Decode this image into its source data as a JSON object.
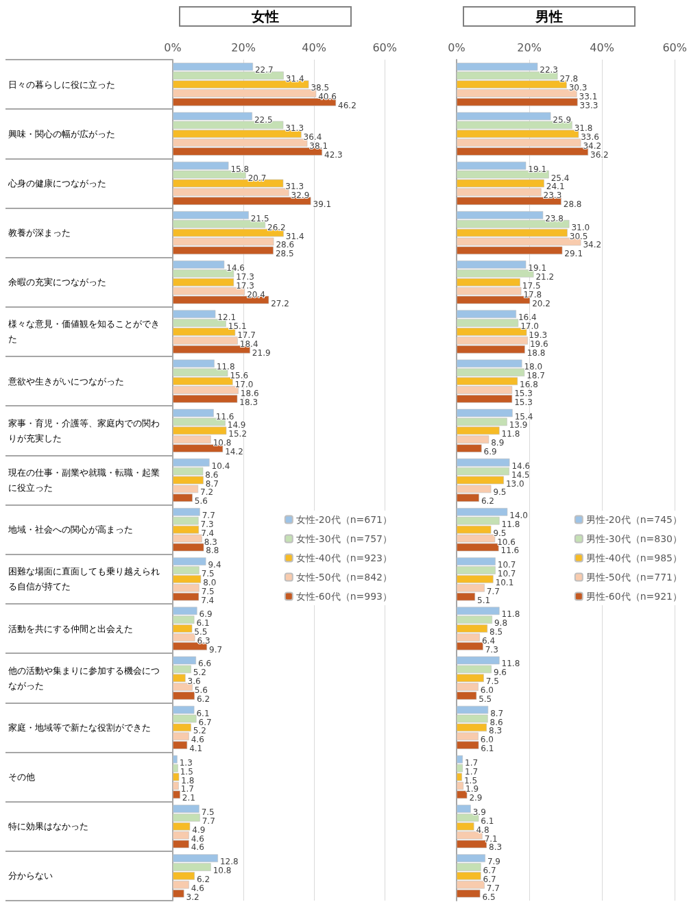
{
  "chart_data": [
    {
      "type": "bar",
      "orientation": "horizontal",
      "title": "女性",
      "categories": [
        "日々の暮らしに役に立った",
        "興味・関心の幅が広がった",
        "心身の健康につながった",
        "教養が深まった",
        "余暇の充実につながった",
        "様々な意見・価値観を知ることができた",
        "意欲や生きがいにつながった",
        "家事・育児・介護等、家庭内での関わりが充実した",
        "現在の仕事・副業や就職・転職・起業に役立った",
        "地域・社会への関心が高まった",
        "困難な場面に直面しても乗り越えられる自信が持てた",
        "活動を共にする仲間と出会えた",
        "他の活動や集まりに参加する機会につながった",
        "家庭・地域等で新たな役割ができた",
        "その他",
        "特に効果はなかった",
        "分からない"
      ],
      "series": [
        {
          "name": "女性-20代（n=671）",
          "color": "#9dc3e6",
          "values": [
            22.7,
            22.5,
            15.8,
            21.5,
            14.6,
            12.1,
            11.8,
            11.6,
            10.4,
            7.7,
            9.4,
            6.9,
            6.6,
            6.1,
            1.3,
            7.5,
            12.8
          ],
          "value_labels": [
            "22.7",
            "22.5",
            "15.8",
            "21.5",
            "14.6",
            "12.1",
            "11.8",
            "11.6",
            "10.4",
            "7.7",
            "9.4",
            "6.9",
            "6.6",
            "6.1",
            "1.3",
            "7.5",
            "12.8"
          ]
        },
        {
          "name": "女性-30代（n=757）",
          "color": "#c5e0b4",
          "values": [
            31.4,
            31.3,
            20.7,
            26.2,
            17.3,
            15.1,
            15.6,
            14.9,
            8.6,
            7.3,
            7.5,
            6.1,
            5.2,
            6.7,
            1.5,
            7.7,
            10.8
          ],
          "value_labels": [
            "31.4",
            "31.3",
            "20.7",
            "26.2",
            "17.3",
            "15.1",
            "15.6",
            "14.9",
            "8.6",
            "7.3",
            "7.5",
            "6.1",
            "5.2",
            "6.7",
            "1.5",
            "7.7",
            "10.8"
          ]
        },
        {
          "name": "女性-40代（n=923）",
          "color": "#f6bb26",
          "values": [
            38.5,
            36.4,
            31.3,
            31.4,
            17.3,
            17.7,
            17.0,
            15.2,
            8.7,
            7.4,
            8.0,
            5.5,
            3.6,
            5.2,
            1.8,
            4.9,
            6.2
          ],
          "value_labels": [
            "38.5",
            "36.4",
            "31.3",
            "31.4",
            "17.3",
            "17.7",
            "17.0",
            "15.2",
            "8.7",
            "7.4",
            "8.0",
            "5.5",
            "3.6",
            "5.2",
            "1.8",
            "4.9",
            "6.2"
          ]
        },
        {
          "name": "女性-50代（n=842）",
          "color": "#f8cbad",
          "values": [
            40.6,
            38.1,
            32.9,
            28.6,
            20.4,
            18.4,
            18.6,
            10.8,
            7.2,
            8.3,
            7.5,
            6.3,
            5.6,
            4.6,
            1.7,
            4.6,
            4.6
          ],
          "value_labels": [
            "40.6",
            "38.1",
            "32.9",
            "28.6",
            "20.4",
            "18.4",
            "18.6",
            "10.8",
            "7.2",
            "8.3",
            "7.5",
            "6.3",
            "5.6",
            "4.6",
            "1.7",
            "4.6",
            "4.6"
          ]
        },
        {
          "name": "女性-60代（n=993）",
          "color": "#c55a22",
          "values": [
            46.2,
            42.3,
            39.1,
            28.5,
            27.2,
            21.9,
            18.3,
            14.2,
            5.6,
            8.8,
            7.4,
            9.7,
            6.2,
            4.1,
            2.1,
            4.6,
            3.2
          ],
          "value_labels": [
            "46.2",
            "42.3",
            "39.1",
            "28.5",
            "27.2",
            "21.9",
            "18.3",
            "14.2",
            "5.6",
            "8.8",
            "7.4",
            "9.7",
            "6.2",
            "4.1",
            "2.1",
            "4.6",
            "3.2"
          ]
        }
      ],
      "xlim": [
        0,
        60
      ],
      "xticks": [
        {
          "value": 0,
          "label": "0%"
        },
        {
          "value": 20,
          "label": "20%"
        },
        {
          "value": 40,
          "label": "40%"
        },
        {
          "value": 60,
          "label": "60%"
        }
      ],
      "grid": "x",
      "legend": "right"
    },
    {
      "type": "bar",
      "orientation": "horizontal",
      "title": "男性",
      "categories": [
        "日々の暮らしに役に立った",
        "興味・関心の幅が広がった",
        "心身の健康につながった",
        "教養が深まった",
        "余暇の充実につながった",
        "様々な意見・価値観を知ることができた",
        "意欲や生きがいにつながった",
        "家事・育児・介護等、家庭内での関わりが充実した",
        "現在の仕事・副業や就職・転職・起業に役立った",
        "地域・社会への関心が高まった",
        "困難な場面に直面しても乗り越えられる自信が持てた",
        "活動を共にする仲間と出会えた",
        "他の活動や集まりに参加する機会につながった",
        "家庭・地域等で新たな役割ができた",
        "その他",
        "特に効果はなかった",
        "分からない"
      ],
      "series": [
        {
          "name": "男性-20代（n=745）",
          "color": "#9dc3e6",
          "values": [
            22.3,
            25.9,
            19.1,
            23.8,
            19.1,
            16.4,
            18.0,
            15.4,
            14.6,
            14.0,
            10.7,
            11.8,
            11.8,
            8.7,
            1.7,
            3.9,
            7.9
          ],
          "value_labels": [
            "22.3",
            "25.9",
            "19.1",
            "23.8",
            "19.1",
            "16.4",
            "18.0",
            "15.4",
            "14.6",
            "14.0",
            "10.7",
            "11.8",
            "11.8",
            "8.7",
            "1.7",
            "3.9",
            "7.9"
          ]
        },
        {
          "name": "男性-30代（n=830）",
          "color": "#c5e0b4",
          "values": [
            27.8,
            31.8,
            25.4,
            31.0,
            21.2,
            17.0,
            18.7,
            13.9,
            14.5,
            11.8,
            10.7,
            9.8,
            9.6,
            8.6,
            1.7,
            6.1,
            6.7
          ],
          "value_labels": [
            "27.8",
            "31.8",
            "25.4",
            "31.0",
            "21.2",
            "17.0",
            "18.7",
            "13.9",
            "14.5",
            "11.8",
            "10.7",
            "9.8",
            "9.6",
            "8.6",
            "1.7",
            "6.1",
            "6.7"
          ]
        },
        {
          "name": "男性-40代（n=985）",
          "color": "#f6bb26",
          "values": [
            30.3,
            33.6,
            24.1,
            30.5,
            17.5,
            19.3,
            16.8,
            11.8,
            13.0,
            9.5,
            10.1,
            8.5,
            7.5,
            8.3,
            1.5,
            4.8,
            6.7
          ],
          "value_labels": [
            "30.3",
            "33.6",
            "24.1",
            "30.5",
            "17.5",
            "19.3",
            "16.8",
            "11.8",
            "13.0",
            "9.5",
            "10.1",
            "8.5",
            "7.5",
            "8.3",
            "1.5",
            "4.8",
            "6.7"
          ]
        },
        {
          "name": "男性-50代（n=771）",
          "color": "#f8cbad",
          "values": [
            33.1,
            34.2,
            23.3,
            34.2,
            17.8,
            19.6,
            15.3,
            8.9,
            9.5,
            10.6,
            7.7,
            6.4,
            6.0,
            6.0,
            1.9,
            7.1,
            7.7
          ],
          "value_labels": [
            "33.1",
            "34.2",
            "23.3",
            "34.2",
            "17.8",
            "19.6",
            "15.3",
            "8.9",
            "9.5",
            "10.6",
            "7.7",
            "6.4",
            "6.0",
            "6.0",
            "1.9",
            "7.1",
            "7.7"
          ]
        },
        {
          "name": "男性-60代（n=921）",
          "color": "#c55a22",
          "values": [
            33.3,
            36.2,
            28.8,
            29.1,
            20.2,
            18.8,
            15.3,
            6.9,
            6.2,
            11.6,
            5.1,
            7.3,
            5.5,
            6.1,
            2.9,
            8.3,
            6.5
          ],
          "value_labels": [
            "33.3",
            "36.2",
            "28.8",
            "29.1",
            "20.2",
            "18.8",
            "15.3",
            "6.9",
            "6.2",
            "11.6",
            "5.1",
            "7.3",
            "5.5",
            "6.1",
            "2.9",
            "8.3",
            "6.5"
          ]
        }
      ],
      "xlim": [
        0,
        60
      ],
      "xticks": [
        {
          "value": 0,
          "label": "0%"
        },
        {
          "value": 20,
          "label": "20%"
        },
        {
          "value": 40,
          "label": "40%"
        },
        {
          "value": 60,
          "label": "60%"
        }
      ],
      "grid": "x",
      "legend": "right",
      "tick_labels": "x"
    }
  ]
}
